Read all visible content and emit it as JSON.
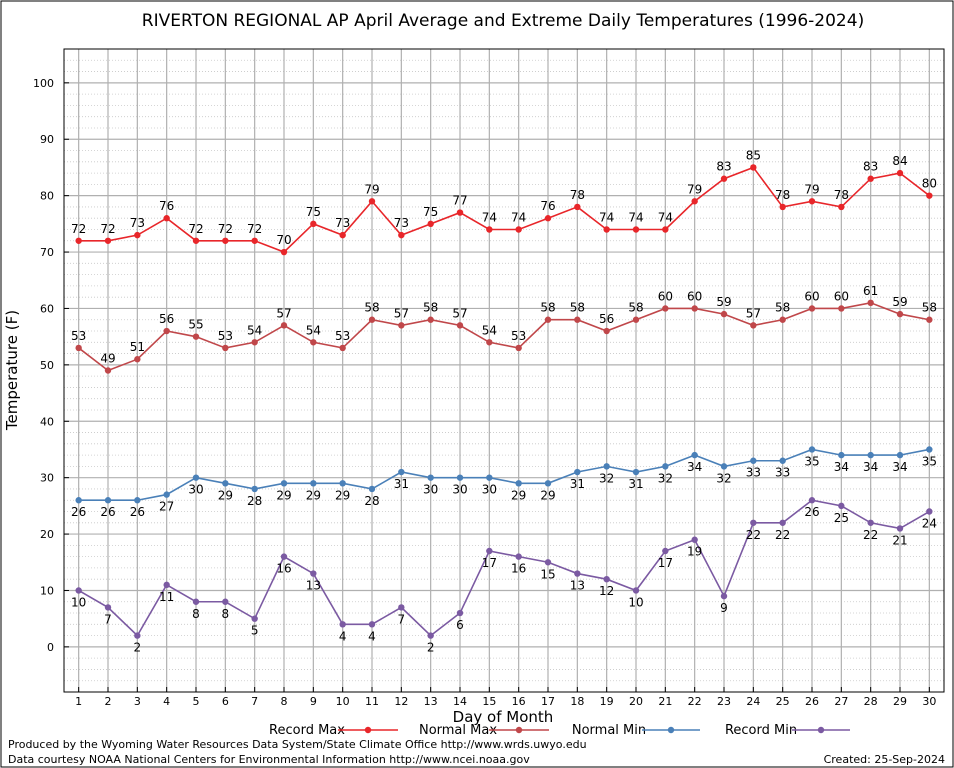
{
  "chart_data": {
    "type": "line",
    "title": "RIVERTON REGIONAL AP April Average and Extreme Daily Temperatures (1996-2024)",
    "xlabel": "Day of Month",
    "ylabel": "Temperature (F)",
    "ylim": [
      -8,
      106
    ],
    "xlim": [
      0.5,
      30.5
    ],
    "yticks": [
      0,
      10,
      20,
      30,
      40,
      50,
      60,
      70,
      80,
      90,
      100
    ],
    "grid": true,
    "legend_position": "bottom",
    "x": [
      1,
      2,
      3,
      4,
      5,
      6,
      7,
      8,
      9,
      10,
      11,
      12,
      13,
      14,
      15,
      16,
      17,
      18,
      19,
      20,
      21,
      22,
      23,
      24,
      25,
      26,
      27,
      28,
      29,
      30
    ],
    "series": [
      {
        "name": "Record Max",
        "color": "#e8262a",
        "label_position": "above",
        "values": [
          72,
          72,
          73,
          76,
          72,
          72,
          72,
          70,
          75,
          73,
          79,
          73,
          75,
          77,
          74,
          74,
          76,
          78,
          74,
          74,
          74,
          79,
          83,
          85,
          78,
          79,
          78,
          83,
          84,
          80
        ]
      },
      {
        "name": "Normal Max",
        "color": "#c0474a",
        "label_position": "above",
        "values": [
          53,
          49,
          51,
          56,
          55,
          53,
          54,
          57,
          54,
          53,
          58,
          57,
          58,
          57,
          54,
          53,
          58,
          58,
          56,
          58,
          60,
          60,
          59,
          57,
          58,
          60,
          60,
          61,
          59,
          58
        ]
      },
      {
        "name": "Normal Min",
        "color": "#4a80b8",
        "label_position": "below",
        "values": [
          26,
          26,
          26,
          27,
          30,
          29,
          28,
          29,
          29,
          29,
          28,
          31,
          30,
          30,
          30,
          29,
          29,
          31,
          32,
          31,
          32,
          34,
          32,
          33,
          33,
          35,
          34,
          34,
          34,
          35
        ]
      },
      {
        "name": "Record Min",
        "color": "#7b5aa2",
        "label_position": "below",
        "values": [
          10,
          7,
          2,
          11,
          8,
          8,
          5,
          16,
          13,
          4,
          4,
          7,
          2,
          6,
          17,
          16,
          15,
          13,
          12,
          10,
          17,
          19,
          9,
          22,
          22,
          26,
          25,
          22,
          21,
          24
        ]
      }
    ]
  },
  "footer": {
    "producer": "Produced by the Wyoming Water Resources Data System/State Climate Office http://www.wrds.uwyo.edu",
    "courtesy": "Data courtesy NOAA National Centers for Environmental Information http://www.ncei.noaa.gov",
    "created": "Created: 25-Sep-2024"
  }
}
